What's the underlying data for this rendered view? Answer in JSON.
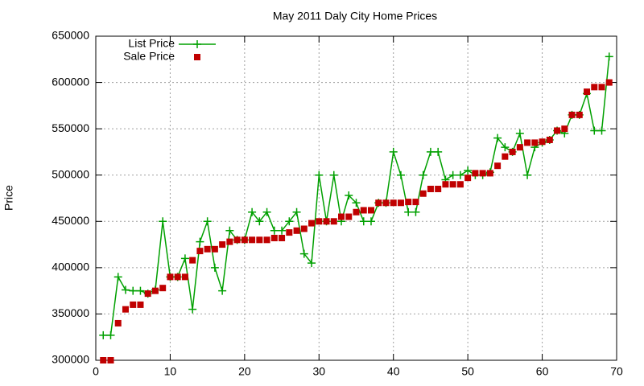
{
  "chart_data": {
    "type": "line",
    "title": "May 2011 Daly City Home Prices",
    "y_label": "Price",
    "x": [
      1,
      2,
      3,
      4,
      5,
      6,
      7,
      8,
      9,
      10,
      11,
      12,
      13,
      14,
      15,
      16,
      17,
      18,
      19,
      20,
      21,
      22,
      23,
      24,
      25,
      26,
      27,
      28,
      29,
      30,
      31,
      32,
      33,
      34,
      35,
      36,
      37,
      38,
      39,
      40,
      41,
      42,
      43,
      44,
      45,
      46,
      47,
      48,
      49,
      50,
      51,
      52,
      53,
      54,
      55,
      56,
      57,
      58,
      59,
      60,
      61,
      62,
      63,
      64,
      65,
      66,
      67,
      68,
      69
    ],
    "series": [
      {
        "name": "List Price",
        "color": "#00a000",
        "marker": "plus",
        "line": true,
        "values": [
          327000,
          327000,
          390000,
          376000,
          375000,
          375000,
          372000,
          376000,
          450000,
          390000,
          390000,
          410000,
          355000,
          428000,
          450000,
          400000,
          375000,
          440000,
          430000,
          430000,
          460000,
          450000,
          460000,
          440000,
          440000,
          450000,
          460000,
          415000,
          405000,
          500000,
          450000,
          500000,
          450000,
          478000,
          470000,
          450000,
          450000,
          470000,
          470000,
          525000,
          500000,
          460000,
          460000,
          500000,
          525000,
          525000,
          495000,
          500000,
          500000,
          505000,
          500000,
          500000,
          503000,
          540000,
          530000,
          525000,
          545000,
          500000,
          530000,
          535000,
          538000,
          548000,
          545000,
          565000,
          565000,
          588000,
          548000,
          548000,
          628000
        ]
      },
      {
        "name": "Sale Price",
        "color": "#c00000",
        "marker": "square",
        "line": false,
        "values": [
          300000,
          300000,
          340000,
          355000,
          360000,
          360000,
          372000,
          375000,
          378000,
          390000,
          390000,
          390000,
          408000,
          418000,
          420000,
          420000,
          425000,
          428000,
          430000,
          430000,
          430000,
          430000,
          430000,
          432000,
          432000,
          438000,
          440000,
          442000,
          448000,
          450000,
          450000,
          450000,
          455000,
          455000,
          460000,
          462000,
          462000,
          470000,
          470000,
          470000,
          470000,
          471000,
          471000,
          480000,
          485000,
          485000,
          490000,
          490000,
          490000,
          497000,
          502000,
          502000,
          502000,
          510000,
          520000,
          525000,
          530000,
          535000,
          535000,
          536000,
          538000,
          548000,
          550000,
          565000,
          565000,
          590000,
          595000,
          595000,
          600000
        ]
      }
    ],
    "xlim": [
      0,
      70
    ],
    "xticks": [
      0,
      10,
      20,
      30,
      40,
      50,
      60,
      70
    ],
    "ylim": [
      300000,
      650000
    ],
    "yticks": [
      300000,
      350000,
      400000,
      450000,
      500000,
      550000,
      600000,
      650000
    ],
    "grid": true,
    "legend": "top-left"
  }
}
